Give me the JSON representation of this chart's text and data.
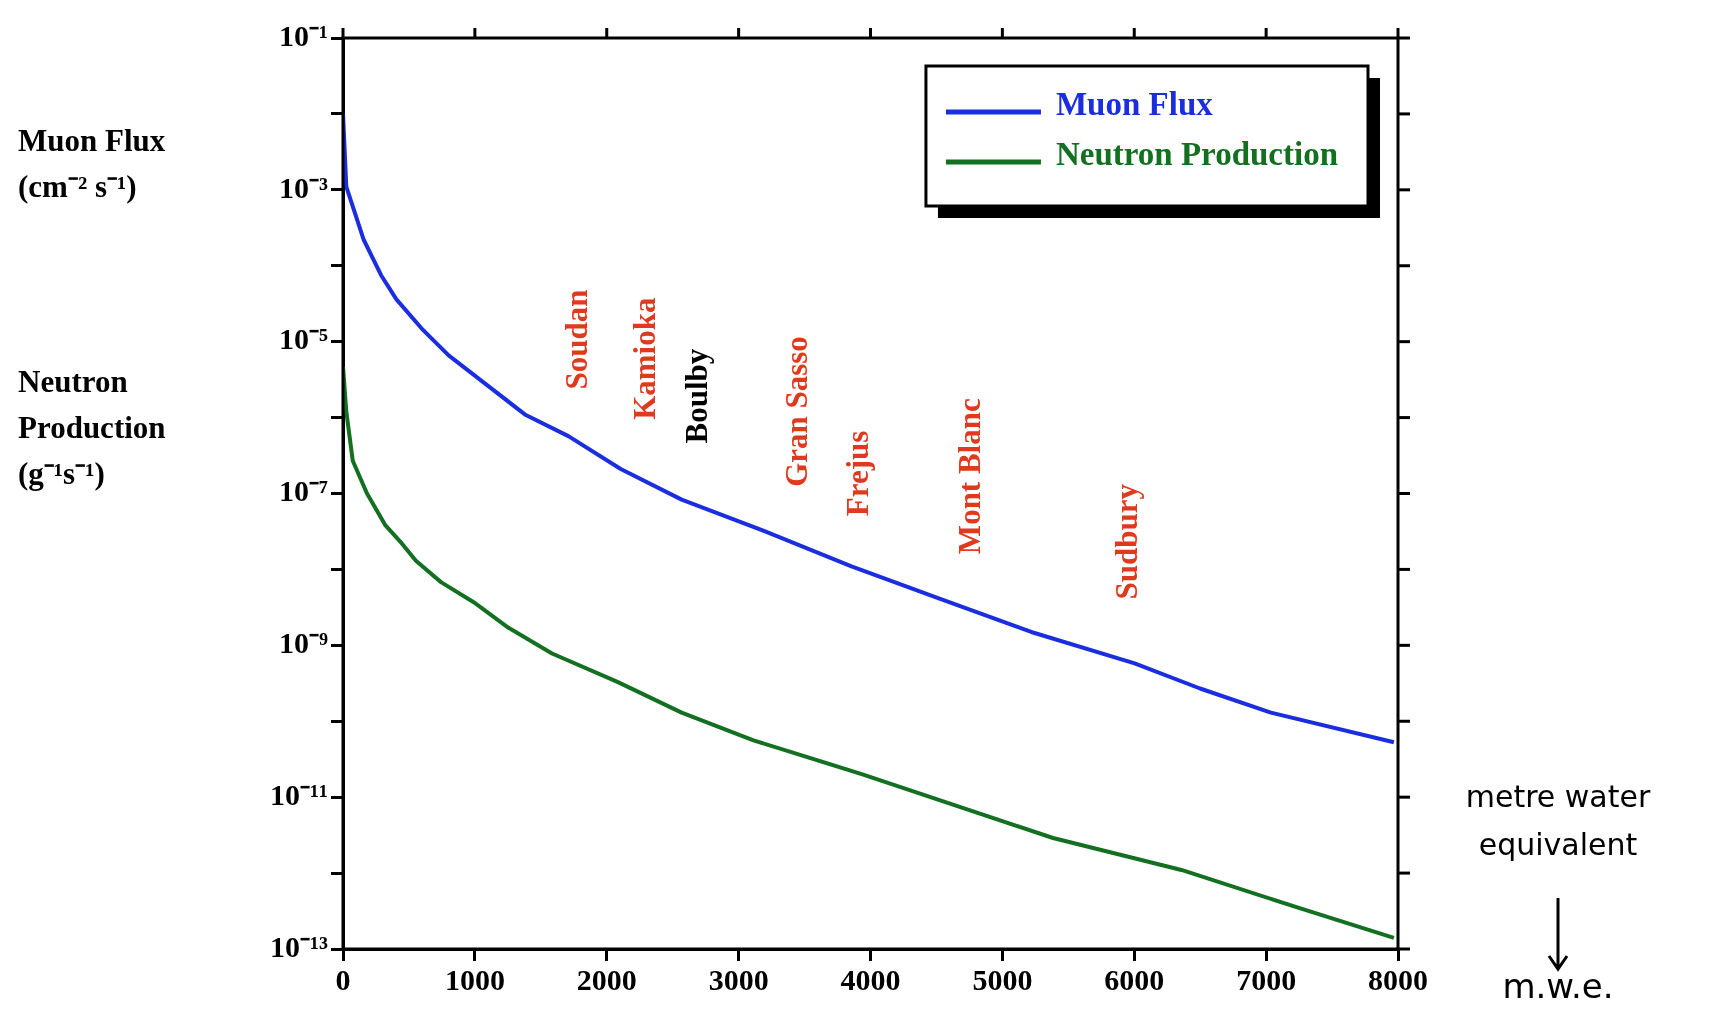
{
  "chart_data": {
    "type": "line",
    "xlabel": "m.w.e.",
    "ylabel": "Muon Flux (cm⁻² s⁻¹)",
    "xlim": [
      0,
      8000
    ],
    "xticks": [
      0,
      1000,
      2000,
      3000,
      4000,
      5000,
      6000,
      7000,
      8000
    ],
    "ylim": [
      1e-13,
      0.1
    ],
    "yticks": [
      {
        "value": 1e-13,
        "label": "10⁻¹³"
      },
      {
        "value": 1e-12,
        "label": null
      },
      {
        "value": 1e-11,
        "label": "10⁻¹¹"
      },
      {
        "value": 1e-10,
        "label": null
      },
      {
        "value": 1e-09,
        "label": "10⁻⁹"
      },
      {
        "value": 1e-08,
        "label": null
      },
      {
        "value": 1e-07,
        "label": "10⁻⁷"
      },
      {
        "value": 1e-06,
        "label": null
      },
      {
        "value": 1e-05,
        "label": "10⁻⁵"
      },
      {
        "value": 0.0001,
        "label": null
      },
      {
        "value": 0.001,
        "label": "10⁻³"
      },
      {
        "value": 0.01,
        "label": null
      },
      {
        "value": 0.1,
        "label": "10⁻¹"
      }
    ],
    "log": "y",
    "grid": false,
    "legend": "top right",
    "marker": "none",
    "line_style": "solid",
    "series": [
      {
        "name": "Muon Flux",
        "color": "#1a2ee0",
        "x": [
          0,
          25,
          157,
          289,
          405,
          595,
          801,
          1090,
          1379,
          1709,
          2106,
          2568,
          3196,
          3856,
          4492,
          5219,
          6003,
          6499,
          7036,
          7969
        ],
        "values": [
          0.01,
          0.0011,
          0.00022,
          7.5e-05,
          3.6e-05,
          1.5e-05,
          6.6e-06,
          2.7e-06,
          1.1e-06,
          5.7e-07,
          2.1e-07,
          8.3e-08,
          3.2e-08,
          1.1e-08,
          4.3e-09,
          1.5e-09,
          5.8e-10,
          2.7e-10,
          1.3e-10,
          5.3e-11
        ]
      },
      {
        "name": "Neutron Production",
        "color": "#127020",
        "x": [
          0,
          25,
          74,
          182,
          322,
          446,
          553,
          743,
          991,
          1255,
          1585,
          2081,
          2568,
          3113,
          3939,
          4682,
          5384,
          6358,
          7242,
          7969
        ],
        "values": [
          4.7e-06,
          1.2e-06,
          2.7e-07,
          1e-07,
          3.8e-08,
          2.2e-08,
          1.3e-08,
          6.8e-09,
          3.7e-09,
          1.7e-09,
          7.8e-10,
          3.3e-10,
          1.3e-10,
          5.6e-11,
          2e-11,
          7.4e-12,
          2.9e-12,
          1.1e-12,
          3.5e-13,
          1.4e-13
        ]
      }
    ],
    "annotations": [
      "Neutron Production (g⁻¹s⁻¹)",
      "metre water equivalent",
      "Soudan",
      "Kamioka",
      "Boulby",
      "Gran Sasso",
      "Frejus",
      "Mont Blanc",
      "Sudbury"
    ]
  }
}
